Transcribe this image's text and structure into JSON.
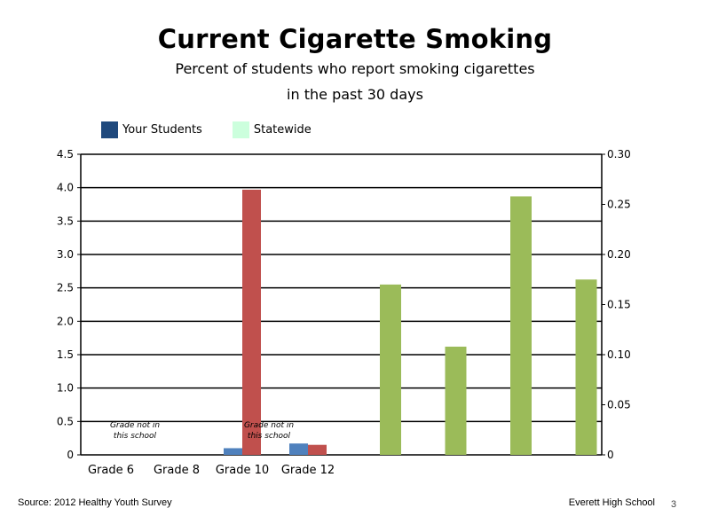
{
  "slide": {
    "title": "Current Cigarette Smoking",
    "subtitle_line1": "Percent of students who report smoking cigarettes",
    "subtitle_line2": "in the past 30 days",
    "source": "Source: 2012 Healthy Youth Survey",
    "school": "Everett High School",
    "page_number": "3"
  },
  "chart_data": {
    "type": "bar",
    "categories": [
      "Grade 6",
      "Grade 8",
      "Grade 10",
      "Grade 12"
    ],
    "legend": [
      {
        "label": "Your Students",
        "color": "#1f497d"
      },
      {
        "label": "Statewide",
        "color": "#ccffdd"
      }
    ],
    "legend_position": "top-left",
    "grid": true,
    "primary_axis": {
      "ylim": [
        0,
        4.5
      ],
      "ticks": [
        "0",
        "0.5",
        "1.0",
        "1.5",
        "2.0",
        "2.5",
        "3.0",
        "3.5",
        "4.0",
        "4.5"
      ]
    },
    "secondary_axis": {
      "ylim": [
        0,
        0.3
      ],
      "ticks": [
        "0",
        "0.05",
        "0.10",
        "0.15",
        "0.20",
        "0.25",
        "0.30"
      ]
    },
    "series": [
      {
        "values": [
          null,
          null,
          0.1,
          0.17
        ],
        "color": "#4f81bd",
        "axis": "primary",
        "slot": "left"
      },
      {
        "values": [
          null,
          null,
          3.97,
          0.15
        ],
        "color": "#c0504d",
        "axis": "primary",
        "slot": "right"
      }
    ],
    "extra_series": {
      "color": "#9bbb59",
      "axis": "secondary",
      "values": [
        0.17,
        0.108,
        0.258,
        0.175
      ]
    },
    "annotations": [
      {
        "category": "Grade 6",
        "line1": "Grade not in",
        "line2": "this school"
      },
      {
        "category": "Grade 12",
        "line1": "Grade not in",
        "line2": "this school"
      }
    ]
  }
}
